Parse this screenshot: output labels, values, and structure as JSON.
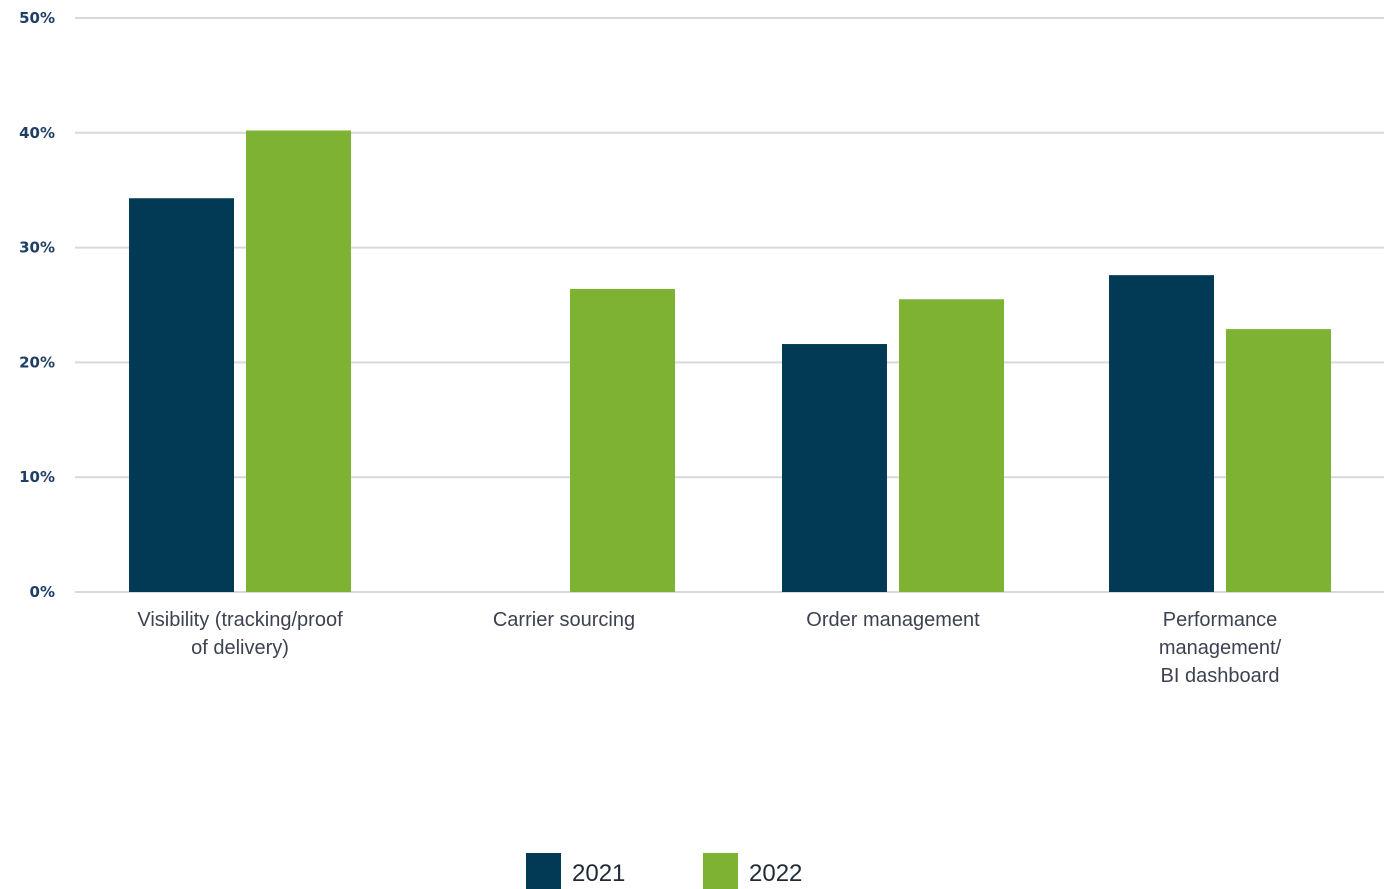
{
  "chart_data": {
    "type": "bar",
    "categories": [
      [
        "Visibility (tracking/proof",
        "of delivery)"
      ],
      [
        "Carrier sourcing"
      ],
      [
        "Order management"
      ],
      [
        "Performance",
        "management/",
        "BI dashboard"
      ]
    ],
    "series": [
      {
        "name": "2021",
        "values": [
          34.3,
          null,
          21.6,
          27.6
        ]
      },
      {
        "name": "2022",
        "values": [
          40.2,
          26.4,
          25.5,
          22.9
        ]
      }
    ],
    "ylim": [
      0,
      50
    ],
    "yticks": [
      0,
      10,
      20,
      30,
      40,
      50
    ],
    "ytick_labels": [
      "0%",
      "10%",
      "20%",
      "30%",
      "40%",
      "50%"
    ],
    "grid": true,
    "legend_position": "bottom-center",
    "colors": {
      "2021": "#023a55",
      "2022": "#7db232",
      "grid": "#d9d9d9",
      "ytick_text": "#1f3f66",
      "xlabel_text": "#3d4250"
    }
  }
}
